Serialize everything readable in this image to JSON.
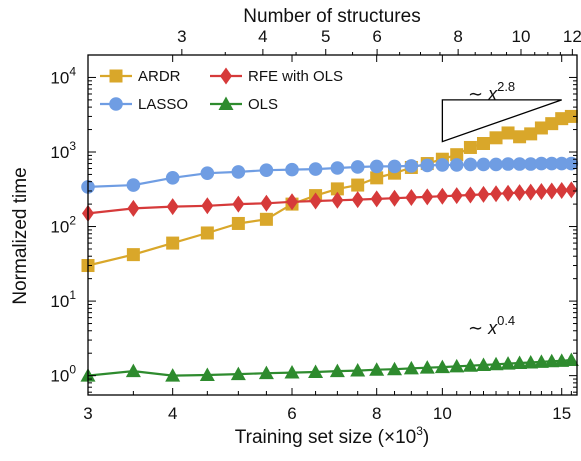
{
  "chart_data": {
    "type": "line",
    "xlabel": "Training set size (×10",
    "xlabel_sup": "3",
    "xlabel_end": ")",
    "x2label": "Number of structures",
    "ylabel": "Normalized time",
    "xscale": "log",
    "yscale": "log",
    "xlim": [
      3,
      15.8
    ],
    "ylim": [
      0.55,
      20000
    ],
    "x2lim": [
      2.15,
      12.2
    ],
    "xticks": [
      3,
      4,
      6,
      8,
      10,
      15
    ],
    "xtick_labels": [
      "3",
      "4",
      "6",
      "8",
      "10",
      "15"
    ],
    "x2ticks": [
      3,
      4,
      5,
      6,
      8,
      10,
      12
    ],
    "x2tick_labels": [
      "3",
      "4",
      "5",
      "6",
      "8",
      "10",
      "12"
    ],
    "yticks": [
      1,
      10,
      100,
      1000,
      10000
    ],
    "ytick_labels": [
      {
        "base": "10",
        "exp": "0"
      },
      {
        "base": "10",
        "exp": "1"
      },
      {
        "base": "10",
        "exp": "2"
      },
      {
        "base": "10",
        "exp": "3"
      },
      {
        "base": "10",
        "exp": "4"
      }
    ],
    "legend_position": "top-left",
    "grid": false,
    "series": [
      {
        "name": "ARDR",
        "marker": "square",
        "color": "#d9a72a",
        "x": [
          3.0,
          3.5,
          4.0,
          4.5,
          5.0,
          5.5,
          6.0,
          6.5,
          7.0,
          7.5,
          8.0,
          8.5,
          9.0,
          9.5,
          10.0,
          10.5,
          11.0,
          11.5,
          12.0,
          12.5,
          13.0,
          13.5,
          14.0,
          14.5,
          15.0,
          15.5
        ],
        "y": [
          30,
          42,
          60,
          82,
          110,
          125,
          200,
          260,
          320,
          360,
          450,
          520,
          620,
          700,
          800,
          920,
          1150,
          1300,
          1550,
          1800,
          1600,
          1750,
          2100,
          2400,
          2800,
          3000
        ]
      },
      {
        "name": "LASSO",
        "marker": "circle",
        "color": "#6f9de3",
        "x": [
          3.0,
          3.5,
          4.0,
          4.5,
          5.0,
          5.5,
          6.0,
          6.5,
          7.0,
          7.5,
          8.0,
          8.5,
          9.0,
          9.5,
          10.0,
          10.5,
          11.0,
          11.5,
          12.0,
          12.5,
          13.0,
          13.5,
          14.0,
          14.5,
          15.0,
          15.5
        ],
        "y": [
          340,
          360,
          450,
          520,
          540,
          570,
          580,
          590,
          610,
          630,
          640,
          640,
          650,
          660,
          670,
          670,
          680,
          680,
          680,
          690,
          690,
          690,
          700,
          700,
          700,
          700
        ]
      },
      {
        "name": "RFE with OLS",
        "marker": "diamond",
        "color": "#d63a3a",
        "x": [
          3.0,
          3.5,
          4.0,
          4.5,
          5.0,
          5.5,
          6.0,
          6.5,
          7.0,
          7.5,
          8.0,
          8.5,
          9.0,
          9.5,
          10.0,
          10.5,
          11.0,
          11.5,
          12.0,
          12.5,
          13.0,
          13.5,
          14.0,
          14.5,
          15.0,
          15.5
        ],
        "y": [
          150,
          175,
          185,
          190,
          200,
          205,
          215,
          220,
          225,
          230,
          235,
          240,
          245,
          250,
          255,
          260,
          265,
          270,
          275,
          280,
          285,
          290,
          295,
          300,
          305,
          310
        ]
      },
      {
        "name": "OLS",
        "marker": "triangle",
        "color": "#2e8b2e",
        "x": [
          3.0,
          3.5,
          4.0,
          4.5,
          5.0,
          5.5,
          6.0,
          6.5,
          7.0,
          7.5,
          8.0,
          8.5,
          9.0,
          9.5,
          10.0,
          10.5,
          11.0,
          11.5,
          12.0,
          12.5,
          13.0,
          13.5,
          14.0,
          14.5,
          15.0,
          15.5
        ],
        "y": [
          1.0,
          1.15,
          1.0,
          1.02,
          1.05,
          1.08,
          1.1,
          1.12,
          1.15,
          1.17,
          1.2,
          1.22,
          1.25,
          1.28,
          1.3,
          1.33,
          1.36,
          1.39,
          1.42,
          1.45,
          1.48,
          1.5,
          1.53,
          1.56,
          1.58,
          1.62
        ]
      }
    ],
    "annotations": [
      {
        "text": "∼ x",
        "sup": "2.8"
      },
      {
        "text": "∼ x",
        "sup": "0.4"
      }
    ]
  }
}
